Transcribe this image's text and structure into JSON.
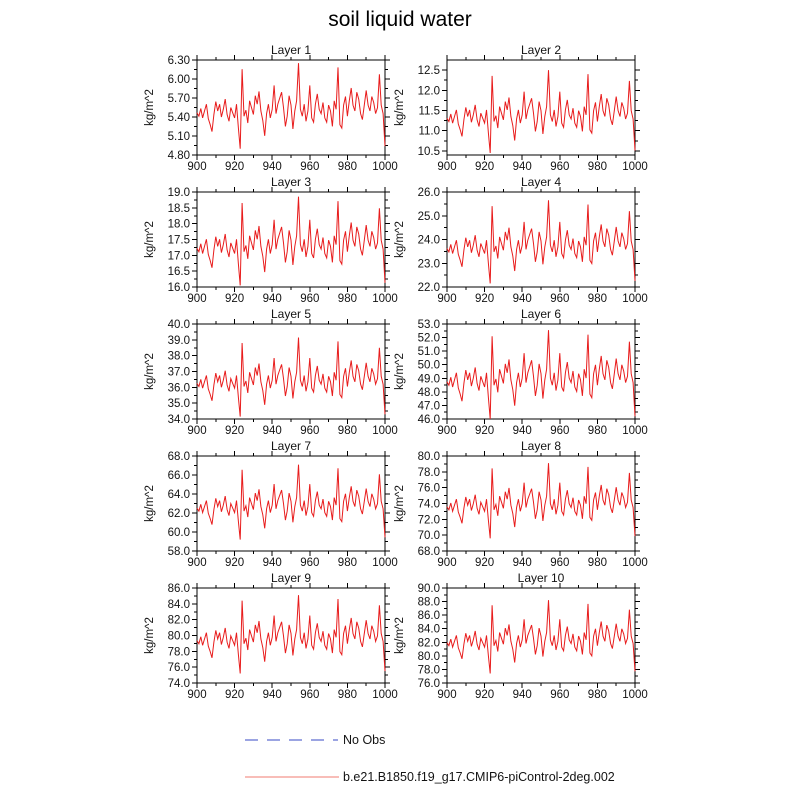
{
  "title": "soil liquid water",
  "ylabel": "kg/m^2",
  "colors": {
    "background": "#ffffff",
    "axis": "#000000",
    "series_line": "#e81c1c",
    "legend_no_obs": "#9ba4e2",
    "legend_case": "#f5a7a1"
  },
  "legend": {
    "items": [
      {
        "name": "no-obs",
        "label": "No Obs",
        "style": "dashed",
        "color": "#9ba4e2"
      },
      {
        "name": "case",
        "label": "b.e21.B1850.f19_g17.CMIP6-piControl-2deg.002",
        "style": "solid",
        "color": "#f5a7a1"
      }
    ]
  },
  "chart_data": {
    "type": "line",
    "grid": "off",
    "title": "soil liquid water",
    "ylabel": "kg/m^2",
    "series_name": "b.e21.B1850.f19_g17.CMIP6-piControl-2deg.002",
    "series_color": "#e81c1c",
    "x": {
      "start": 900,
      "end": 1000,
      "step": 1,
      "major_ticks": [
        900,
        920,
        940,
        960,
        980,
        1000
      ],
      "minor_ticks": [
        910,
        930,
        950,
        970,
        990
      ]
    },
    "normalized_values": [
      0.42,
      0.38,
      0.47,
      0.36,
      0.44,
      0.52,
      0.35,
      0.28,
      0.2,
      0.4,
      0.55,
      0.44,
      0.52,
      0.37,
      0.46,
      0.58,
      0.4,
      0.32,
      0.48,
      0.42,
      0.36,
      0.52,
      0.24,
      0.0,
      0.93,
      0.38,
      0.45,
      0.3,
      0.56,
      0.48,
      0.4,
      0.62,
      0.52,
      0.67,
      0.44,
      0.33,
      0.15,
      0.41,
      0.52,
      0.36,
      0.46,
      0.74,
      0.41,
      0.52,
      0.59,
      0.66,
      0.48,
      0.26,
      0.38,
      0.62,
      0.51,
      0.23,
      0.44,
      0.56,
      1.0,
      0.46,
      0.38,
      0.52,
      0.32,
      0.44,
      0.74,
      0.36,
      0.31,
      0.52,
      0.64,
      0.46,
      0.41,
      0.54,
      0.36,
      0.31,
      0.51,
      0.44,
      0.26,
      0.56,
      0.46,
      0.95,
      0.28,
      0.24,
      0.51,
      0.61,
      0.38,
      0.56,
      0.71,
      0.51,
      0.44,
      0.66,
      0.58,
      0.41,
      0.34,
      0.51,
      0.68,
      0.51,
      0.44,
      0.61,
      0.54,
      0.41,
      0.48,
      0.87,
      0.51,
      0.41,
      0.03
    ],
    "subplots": [
      {
        "title": "Layer 1",
        "yticks": [
          4.8,
          5.1,
          5.4,
          5.7,
          6.0,
          6.3
        ],
        "ydecimals": 2,
        "yaxis_min": 4.8,
        "yaxis_max": 6.3,
        "data_min": 4.9,
        "data_max": 6.25
      },
      {
        "title": "Layer 2",
        "yticks": [
          10.5,
          11.0,
          11.5,
          12.0,
          12.5
        ],
        "ydecimals": 1,
        "yaxis_min": 10.4,
        "yaxis_max": 12.75,
        "data_min": 10.45,
        "data_max": 12.5
      },
      {
        "title": "Layer 3",
        "yticks": [
          16.0,
          16.5,
          17.0,
          17.5,
          18.0,
          18.5,
          19.0
        ],
        "ydecimals": 1,
        "yaxis_min": 16.0,
        "yaxis_max": 19.0,
        "data_min": 16.05,
        "data_max": 18.85
      },
      {
        "title": "Layer 4",
        "yticks": [
          22.0,
          23.0,
          24.0,
          25.0,
          26.0
        ],
        "ydecimals": 1,
        "yaxis_min": 22.0,
        "yaxis_max": 26.0,
        "data_min": 22.15,
        "data_max": 25.65
      },
      {
        "title": "Layer 5",
        "yticks": [
          34.0,
          35.0,
          36.0,
          37.0,
          38.0,
          39.0,
          40.0
        ],
        "ydecimals": 1,
        "yaxis_min": 34.0,
        "yaxis_max": 40.0,
        "data_min": 34.15,
        "data_max": 39.15
      },
      {
        "title": "Layer 6",
        "yticks": [
          46.0,
          47.0,
          48.0,
          49.0,
          50.0,
          51.0,
          52.0,
          53.0
        ],
        "ydecimals": 1,
        "yaxis_min": 46.0,
        "yaxis_max": 53.0,
        "data_min": 46.0,
        "data_max": 52.55
      },
      {
        "title": "Layer 7",
        "yticks": [
          58.0,
          60.0,
          62.0,
          64.0,
          66.0,
          68.0
        ],
        "ydecimals": 1,
        "yaxis_min": 58.0,
        "yaxis_max": 68.0,
        "data_min": 59.2,
        "data_max": 67.1
      },
      {
        "title": "Layer 8",
        "yticks": [
          68.0,
          70.0,
          72.0,
          74.0,
          76.0,
          78.0,
          80.0
        ],
        "ydecimals": 1,
        "yaxis_min": 68.0,
        "yaxis_max": 80.0,
        "data_min": 69.6,
        "data_max": 79.1
      },
      {
        "title": "Layer 9",
        "yticks": [
          74.0,
          76.0,
          78.0,
          80.0,
          82.0,
          84.0,
          86.0
        ],
        "ydecimals": 1,
        "yaxis_min": 74.0,
        "yaxis_max": 86.0,
        "data_min": 75.2,
        "data_max": 85.1
      },
      {
        "title": "Layer 10",
        "yticks": [
          76.0,
          78.0,
          80.0,
          82.0,
          84.0,
          86.0,
          88.0,
          90.0
        ],
        "ydecimals": 1,
        "yaxis_min": 76.0,
        "yaxis_max": 90.0,
        "data_min": 77.4,
        "data_max": 88.2
      }
    ]
  }
}
